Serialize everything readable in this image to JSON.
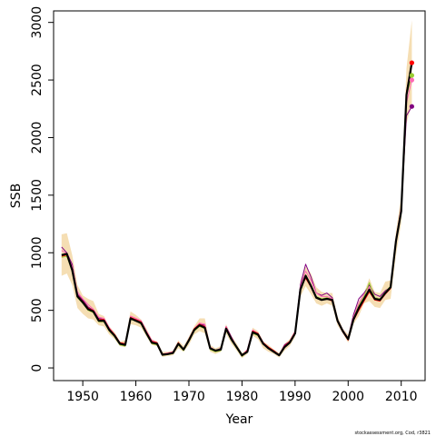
{
  "chart_data": {
    "type": "line",
    "xlabel": "Year",
    "ylabel": "SSB",
    "xlim": [
      1944.5,
      2014.5
    ],
    "ylim": [
      -110,
      3100
    ],
    "x_ticks": [
      1950,
      1960,
      1970,
      1980,
      1990,
      2000,
      2010
    ],
    "y_ticks": [
      0,
      500,
      1000,
      1500,
      2000,
      2500,
      3000
    ],
    "grid": false,
    "legend": "none",
    "x": [
      1946,
      1947,
      1948,
      1949,
      1950,
      1951,
      1952,
      1953,
      1954,
      1955,
      1956,
      1957,
      1958,
      1959,
      1960,
      1961,
      1962,
      1963,
      1964,
      1965,
      1966,
      1967,
      1968,
      1969,
      1970,
      1971,
      1972,
      1973,
      1974,
      1975,
      1976,
      1977,
      1978,
      1979,
      1980,
      1981,
      1982,
      1983,
      1984,
      1985,
      1986,
      1987,
      1988,
      1989,
      1990,
      1991,
      1992,
      1993,
      1994,
      1995,
      1996,
      1997,
      1998,
      1999,
      2000,
      2001,
      2002,
      2003,
      2004,
      2005,
      2006,
      2007,
      2008,
      2009,
      2010,
      2011,
      2012
    ],
    "band": {
      "color": "#F5DEB3",
      "lower": [
        800,
        820,
        720,
        520,
        470,
        430,
        420,
        370,
        360,
        290,
        250,
        190,
        180,
        380,
        370,
        350,
        270,
        200,
        190,
        95,
        105,
        110,
        170,
        140,
        200,
        290,
        320,
        300,
        140,
        120,
        140,
        300,
        210,
        150,
        85,
        120,
        280,
        250,
        170,
        140,
        120,
        90,
        150,
        190,
        270,
        620,
        710,
        640,
        560,
        540,
        560,
        540,
        370,
        300,
        220,
        380,
        450,
        560,
        580,
        530,
        520,
        590,
        600,
        980,
        1260,
        2120,
        2300
      ],
      "upper": [
        1160,
        1170,
        980,
        720,
        630,
        600,
        580,
        470,
        450,
        360,
        310,
        230,
        240,
        490,
        460,
        420,
        340,
        250,
        230,
        140,
        140,
        150,
        240,
        190,
        270,
        360,
        430,
        430,
        200,
        170,
        190,
        380,
        280,
        210,
        130,
        160,
        350,
        320,
        230,
        200,
        160,
        130,
        210,
        250,
        330,
        760,
        880,
        820,
        700,
        660,
        650,
        650,
        450,
        340,
        290,
        480,
        580,
        650,
        780,
        660,
        650,
        750,
        760,
        1180,
        1490,
        2600,
        3020
      ]
    },
    "series": [
      {
        "color": "#000000",
        "values": [
          980,
          990,
          850,
          620,
          570,
          510,
          490,
          410,
          410,
          330,
          280,
          210,
          200,
          430,
          410,
          390,
          300,
          220,
          210,
          115,
          120,
          130,
          210,
          160,
          240,
          330,
          370,
          350,
          170,
          150,
          160,
          340,
          250,
          180,
          110,
          140,
          310,
          290,
          210,
          170,
          140,
          110,
          180,
          220,
          300,
          680,
          800,
          710,
          610,
          590,
          600,
          590,
          410,
          320,
          250,
          420,
          520,
          600,
          680,
          600,
          590,
          650,
          700,
          1100,
          1360,
          2370,
          2650
        ]
      },
      {
        "color": "#800080",
        "values": [
          1050,
          1000,
          900,
          640,
          590,
          530,
          500,
          430,
          420,
          340,
          280,
          210,
          200,
          430,
          420,
          400,
          310,
          230,
          220,
          120,
          125,
          130,
          210,
          160,
          250,
          330,
          380,
          370,
          180,
          150,
          170,
          360,
          270,
          180,
          100,
          150,
          320,
          300,
          220,
          180,
          140,
          110,
          200,
          230,
          310,
          720,
          900,
          790,
          650,
          630,
          650,
          610,
          420,
          320,
          260,
          460,
          600,
          650,
          720,
          640,
          620,
          670,
          700,
          1090,
          1390,
          2190,
          2270
        ]
      },
      {
        "color": "#FF69B4",
        "values": [
          1020,
          990,
          880,
          660,
          600,
          550,
          510,
          440,
          430,
          350,
          290,
          220,
          210,
          450,
          430,
          410,
          320,
          240,
          220,
          120,
          130,
          140,
          220,
          160,
          250,
          340,
          390,
          380,
          180,
          150,
          160,
          360,
          260,
          180,
          110,
          160,
          330,
          300,
          220,
          180,
          150,
          115,
          190,
          230,
          320,
          700,
          840,
          760,
          650,
          620,
          620,
          600,
          420,
          330,
          260,
          440,
          560,
          640,
          700,
          610,
          600,
          650,
          700,
          1110,
          1400,
          2300,
          2500
        ]
      },
      {
        "color": "#9ACD32",
        "values": [
          960,
          970,
          840,
          610,
          560,
          500,
          480,
          400,
          400,
          320,
          270,
          200,
          190,
          420,
          410,
          380,
          290,
          210,
          200,
          110,
          115,
          125,
          200,
          150,
          230,
          320,
          360,
          340,
          160,
          140,
          150,
          330,
          240,
          170,
          100,
          140,
          300,
          280,
          210,
          170,
          140,
          110,
          180,
          220,
          300,
          690,
          810,
          720,
          620,
          600,
          610,
          590,
          410,
          320,
          250,
          430,
          540,
          620,
          740,
          610,
          600,
          660,
          710,
          1100,
          1370,
          2360,
          2540
        ]
      },
      {
        "color": "#FF0000",
        "values": [
          970,
          980,
          860,
          630,
          580,
          520,
          500,
          420,
          420,
          340,
          290,
          220,
          210,
          440,
          420,
          400,
          310,
          230,
          220,
          120,
          125,
          135,
          220,
          160,
          250,
          340,
          380,
          360,
          170,
          150,
          160,
          350,
          260,
          180,
          110,
          150,
          320,
          300,
          220,
          180,
          150,
          115,
          190,
          230,
          310,
          690,
          780,
          700,
          610,
          590,
          600,
          580,
          400,
          310,
          240,
          410,
          500,
          580,
          660,
          590,
          580,
          640,
          690,
          1120,
          1380,
          2400,
          2650
        ]
      }
    ]
  }
}
